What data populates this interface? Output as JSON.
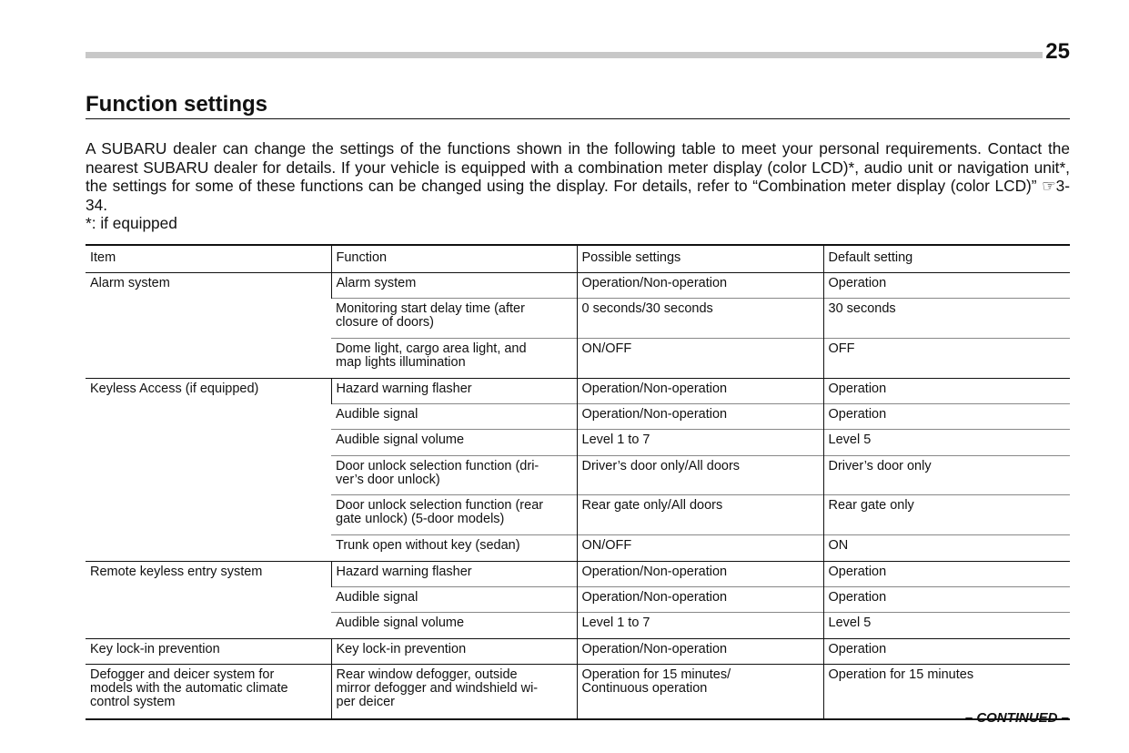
{
  "page_number": "25",
  "title": "Function settings",
  "intro": "A SUBARU dealer can change the settings of the functions shown in the following table to meet your personal requirements. Contact the nearest SUBARU dealer for details. If your vehicle is equipped with a combination meter display (color LCD)*, audio unit or navigation unit*, the settings for some of these functions can be changed using the display. For details, refer to “Combination meter display (color LCD)” ☞3-34.",
  "footnote": "*: if equipped",
  "table": {
    "headers": [
      "Item",
      "Function",
      "Possible settings",
      "Default setting"
    ],
    "groups": [
      {
        "item": "Alarm system",
        "rows": [
          {
            "function": "Alarm system",
            "possible": "Operation/Non-operation",
            "default": "Operation"
          },
          {
            "function": "Monitoring start delay time (after\nclosure of doors)",
            "possible": "0 seconds/30 seconds",
            "default": "30 seconds"
          },
          {
            "function": "Dome light, cargo area light, and\nmap lights illumination",
            "possible": "ON/OFF",
            "default": "OFF"
          }
        ]
      },
      {
        "item": "Keyless Access (if equipped)",
        "rows": [
          {
            "function": "Hazard warning flasher",
            "possible": "Operation/Non-operation",
            "default": "Operation"
          },
          {
            "function": "Audible signal",
            "possible": "Operation/Non-operation",
            "default": "Operation"
          },
          {
            "function": "Audible signal volume",
            "possible": "Level 1 to 7",
            "default": "Level 5"
          },
          {
            "function": "Door unlock selection function (dri-\nver’s door unlock)",
            "possible": "Driver’s door only/All doors",
            "default": "Driver’s door only"
          },
          {
            "function": "Door unlock selection function (rear\ngate unlock) (5-door models)",
            "possible": "Rear gate only/All doors",
            "default": "Rear gate only"
          },
          {
            "function": "Trunk open without key (sedan)",
            "possible": "ON/OFF",
            "default": "ON"
          }
        ]
      },
      {
        "item": "Remote keyless entry system",
        "rows": [
          {
            "function": "Hazard warning flasher",
            "possible": "Operation/Non-operation",
            "default": "Operation"
          },
          {
            "function": "Audible signal",
            "possible": "Operation/Non-operation",
            "default": "Operation"
          },
          {
            "function": "Audible signal volume",
            "possible": "Level 1 to 7",
            "default": "Level 5"
          }
        ]
      },
      {
        "item": "Key lock-in prevention",
        "rows": [
          {
            "function": "Key lock-in prevention",
            "possible": "Operation/Non-operation",
            "default": "Operation"
          }
        ]
      },
      {
        "item": "Defogger and deicer system for\nmodels with the automatic climate\ncontrol system",
        "rows": [
          {
            "function": "Rear window defogger, outside\nmirror defogger and windshield wi-\nper deicer",
            "possible": "Operation for 15 minutes/\nContinuous operation",
            "default": "Operation for 15 minutes"
          }
        ]
      }
    ]
  },
  "continued": "– CONTINUED –"
}
